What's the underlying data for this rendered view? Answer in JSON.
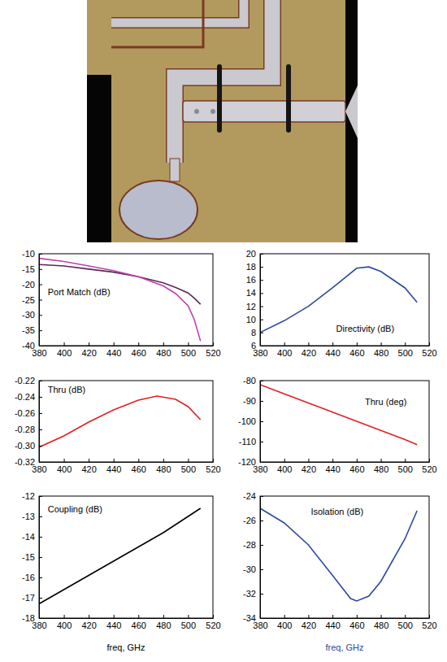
{
  "chart_data": [
    {
      "type": "line",
      "title": "Port Match (dB)",
      "x": [
        380,
        400,
        420,
        440,
        460,
        480,
        490,
        500,
        505,
        510
      ],
      "series": [
        {
          "color": "#5a2a50",
          "values": [
            -13.5,
            -14,
            -15,
            -16,
            -17.5,
            -19.5,
            -21,
            -22.8,
            -24.5,
            -26.5
          ]
        },
        {
          "color": "#c040b0",
          "values": [
            -11.5,
            -12.5,
            -14,
            -15.5,
            -17.5,
            -20.5,
            -23,
            -27,
            -31.5,
            -38.5
          ]
        }
      ],
      "xlim": [
        380,
        520
      ],
      "xticks": [
        380,
        400,
        420,
        440,
        460,
        480,
        500,
        520
      ],
      "ylim": [
        -40,
        -10
      ],
      "yticks": [
        -40,
        -35,
        -30,
        -25,
        -20,
        -15,
        -10
      ]
    },
    {
      "type": "line",
      "title": "Directivity (dB)",
      "x": [
        380,
        400,
        420,
        440,
        460,
        470,
        480,
        500,
        510
      ],
      "series": [
        {
          "color": "#2b4aa0",
          "values": [
            8,
            9.8,
            12,
            14.8,
            17.8,
            18,
            17.3,
            14.8,
            12.6
          ]
        }
      ],
      "xlim": [
        380,
        520
      ],
      "xticks": [
        380,
        400,
        420,
        440,
        460,
        480,
        500,
        520
      ],
      "ylim": [
        6,
        20
      ],
      "yticks": [
        6,
        8,
        10,
        12,
        14,
        16,
        18,
        20
      ]
    },
    {
      "type": "line",
      "title": "Thru (dB)",
      "x": [
        380,
        400,
        420,
        440,
        460,
        475,
        490,
        500,
        510
      ],
      "series": [
        {
          "color": "#e02020",
          "values": [
            -0.302,
            -0.288,
            -0.271,
            -0.256,
            -0.244,
            -0.239,
            -0.243,
            -0.252,
            -0.268
          ]
        }
      ],
      "xlim": [
        380,
        520
      ],
      "xticks": [
        380,
        400,
        420,
        440,
        460,
        480,
        500,
        520
      ],
      "ylim": [
        -0.32,
        -0.22
      ],
      "yticks": [
        -0.32,
        {
          "value": -0.3,
          "label": "-0.30"
        },
        -0.28,
        -0.26,
        -0.24,
        -0.22
      ]
    },
    {
      "type": "line",
      "title": "Thru (deg)",
      "x": [
        380,
        400,
        420,
        440,
        460,
        480,
        500,
        510
      ],
      "series": [
        {
          "color": "#e02020",
          "values": [
            -82,
            -86.5,
            -91,
            -95.5,
            -100,
            -104.5,
            -109,
            -111.5
          ]
        }
      ],
      "xlim": [
        380,
        520
      ],
      "xticks": [
        380,
        400,
        420,
        440,
        460,
        480,
        500,
        520
      ],
      "ylim": [
        -120,
        -80
      ],
      "yticks": [
        -120,
        -110,
        -100,
        -90,
        -80
      ]
    },
    {
      "type": "line",
      "title": "Coupling (dB)",
      "xlabel": "freq, GHz",
      "x": [
        380,
        400,
        420,
        440,
        460,
        480,
        500,
        510
      ],
      "series": [
        {
          "color": "#000000",
          "values": [
            -17.3,
            -16.6,
            -15.9,
            -15.2,
            -14.5,
            -13.8,
            -13,
            -12.6
          ]
        }
      ],
      "xlim": [
        380,
        520
      ],
      "xticks": [
        380,
        400,
        420,
        440,
        460,
        480,
        500,
        520
      ],
      "ylim": [
        -18,
        -12
      ],
      "yticks": [
        -18,
        -17,
        -16,
        -15,
        -14,
        -13,
        -12
      ]
    },
    {
      "type": "line",
      "title": "Isolation (dB)",
      "xlabel": "freq, GHz",
      "x": [
        380,
        400,
        420,
        440,
        455,
        460,
        470,
        480,
        500,
        510
      ],
      "series": [
        {
          "color": "#2b4aa0",
          "values": [
            -25,
            -26.2,
            -28,
            -30.5,
            -32.4,
            -32.6,
            -32.2,
            -31,
            -27.5,
            -25.2
          ]
        }
      ],
      "xlim": [
        380,
        520
      ],
      "xticks": [
        380,
        400,
        420,
        440,
        460,
        480,
        500,
        520
      ],
      "ylim": [
        -34,
        -24
      ],
      "yticks": [
        -34,
        -32,
        -30,
        -28,
        -26,
        -24
      ]
    }
  ]
}
